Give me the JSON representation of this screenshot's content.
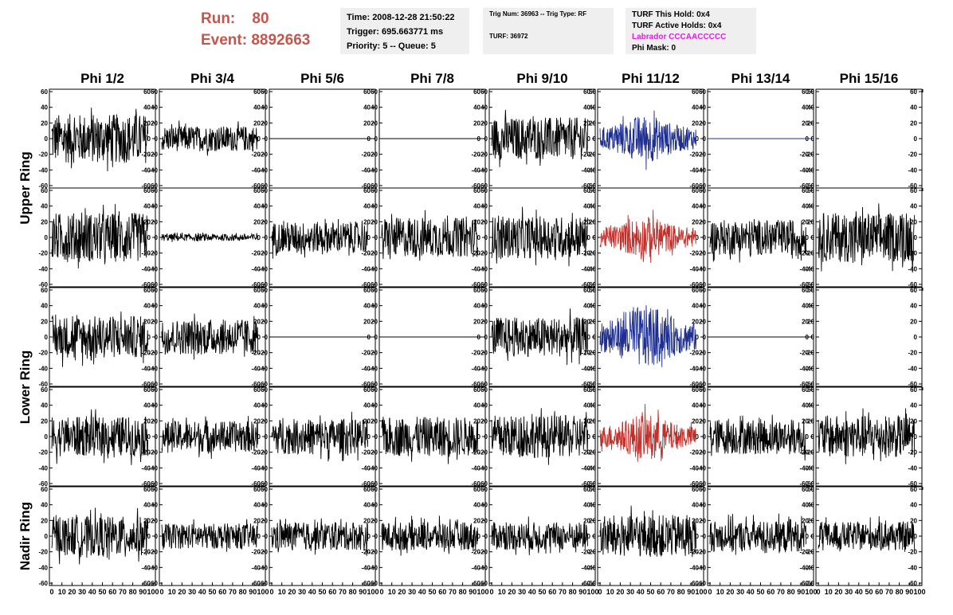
{
  "header": {
    "run_label": "Run:",
    "run_value": "80",
    "event_label": "Event:",
    "event_value": "8892663"
  },
  "info_boxes": {
    "time": "Time: 2008-12-28 21:50:22",
    "trigger": "Trigger: 695.663771 ms",
    "priority": "Priority: 5 -- Queue: 5",
    "trig_num": "Trig Num: 36963 -- Trig Type: RF",
    "turf": "TURF: 36972",
    "turf_this_hold": "TURF This Hold: 0x4",
    "turf_active_holds": "TURF Active Holds: 0x4",
    "labrador": "Labrador CCCAACCCCC",
    "phi_mask": "Phi Mask: 0"
  },
  "colors": {
    "header_text": "#c8544c",
    "labrador": "#e020e0",
    "trace_default": "#000000",
    "trace_blue": "#1f2f8f",
    "trace_red": "#c0302a",
    "box_bg": "#efefef"
  },
  "chart_data": {
    "type": "line",
    "columns": [
      "Phi 1/2",
      "Phi 3/4",
      "Phi 5/6",
      "Phi 7/8",
      "Phi 9/10",
      "Phi 11/12",
      "Phi 13/14",
      "Phi 15/16"
    ],
    "ring_groups": [
      "Upper Ring",
      "Lower Ring",
      "Nadir Ring"
    ],
    "rows": [
      {
        "group": "Upper Ring",
        "amplitudes": [
          35,
          18,
          0,
          0,
          30,
          34,
          0,
          null
        ],
        "colors": [
          "black",
          "black",
          "black",
          "black",
          "black",
          "blue",
          "blue",
          "black"
        ]
      },
      {
        "group": "Upper Ring",
        "amplitudes": [
          35,
          5,
          22,
          28,
          30,
          30,
          25,
          35
        ],
        "colors": [
          "black",
          "black",
          "black",
          "black",
          "black",
          "red",
          "black",
          "black"
        ]
      },
      {
        "group": "Lower Ring",
        "amplitudes": [
          30,
          25,
          0,
          0,
          28,
          45,
          0,
          null
        ],
        "colors": [
          "black",
          "black",
          "black",
          "black",
          "black",
          "blue",
          "black",
          "black"
        ]
      },
      {
        "group": "Lower Ring",
        "amplitudes": [
          28,
          22,
          25,
          28,
          30,
          32,
          25,
          30
        ],
        "colors": [
          "black",
          "black",
          "black",
          "black",
          "black",
          "red",
          "black",
          "black"
        ]
      },
      {
        "group": "Nadir Ring",
        "amplitudes": [
          28,
          18,
          20,
          20,
          20,
          30,
          22,
          20
        ],
        "colors": [
          "black",
          "black",
          "black",
          "black",
          "black",
          "black",
          "black",
          "black"
        ]
      }
    ],
    "ylim": [
      -60,
      60
    ],
    "yticks": [
      "60",
      "40",
      "20",
      "0",
      "-20",
      "-40",
      "-60"
    ],
    "xlim": [
      0,
      100
    ],
    "xtick_text": [
      "0",
      "10",
      "20",
      "30",
      "40",
      "50",
      "60",
      "70",
      "80",
      "90",
      "100"
    ]
  }
}
